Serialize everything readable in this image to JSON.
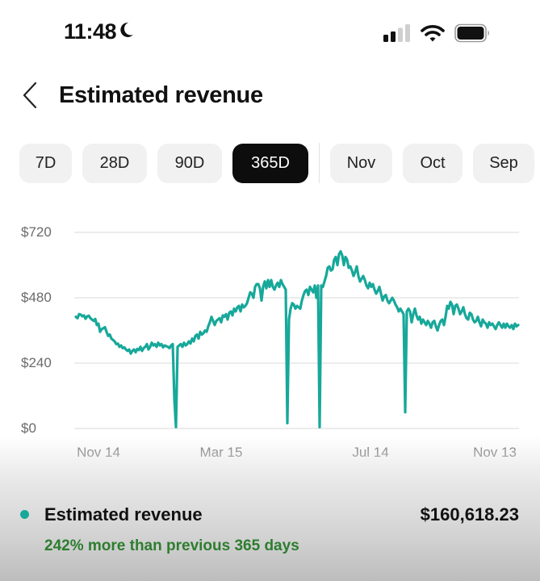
{
  "status_bar": {
    "time": "11:48",
    "focus_icon": "moon-icon",
    "signal_bars_active": 2,
    "signal_bars_total": 4
  },
  "header": {
    "back_icon": "chevron-left-icon",
    "title": "Estimated revenue"
  },
  "tabs": [
    {
      "label": "7D",
      "width": 65,
      "active": false
    },
    {
      "label": "28D",
      "width": 80,
      "active": false
    },
    {
      "label": "90D",
      "width": 80,
      "active": false
    },
    {
      "label": "365D",
      "width": 94,
      "active": true
    },
    {
      "label": "Nov",
      "width": 77,
      "active": false
    },
    {
      "label": "Oct",
      "width": 74,
      "active": false
    },
    {
      "label": "Sep",
      "width": 76,
      "active": false
    }
  ],
  "colors": {
    "line": "#17a89a",
    "grid": "#e6e6e6",
    "positive_change": "#2d7d2f",
    "active_tab_bg": "#0d0d0d"
  },
  "chart_data": {
    "type": "line",
    "title": "Estimated revenue",
    "xlabel": "",
    "ylabel": "",
    "ylim": [
      0,
      720
    ],
    "grid": true,
    "y_ticks": [
      "$720",
      "$480",
      "$240",
      "$0"
    ],
    "y_tick_values": [
      720,
      480,
      240,
      0
    ],
    "x_ticks": [
      "Nov 14",
      "Mar 15",
      "Jul 14",
      "Nov 13"
    ],
    "x_tick_positions": [
      122,
      274,
      459,
      613
    ],
    "series": [
      {
        "name": "Estimated revenue",
        "points": [
          [
            94,
            410
          ],
          [
            96,
            405
          ],
          [
            98,
            420
          ],
          [
            100,
            418
          ],
          [
            102,
            412
          ],
          [
            104,
            415
          ],
          [
            106,
            403
          ],
          [
            108,
            412
          ],
          [
            110,
            414
          ],
          [
            112,
            405
          ],
          [
            114,
            400
          ],
          [
            116,
            395
          ],
          [
            118,
            402
          ],
          [
            120,
            380
          ],
          [
            122,
            385
          ],
          [
            124,
            355
          ],
          [
            126,
            365
          ],
          [
            128,
            368
          ],
          [
            130,
            372
          ],
          [
            132,
            355
          ],
          [
            134,
            340
          ],
          [
            136,
            345
          ],
          [
            138,
            330
          ],
          [
            140,
            325
          ],
          [
            142,
            320
          ],
          [
            144,
            310
          ],
          [
            146,
            312
          ],
          [
            148,
            300
          ],
          [
            150,
            305
          ],
          [
            152,
            295
          ],
          [
            154,
            298
          ],
          [
            156,
            290
          ],
          [
            158,
            285
          ],
          [
            160,
            290
          ],
          [
            162,
            275
          ],
          [
            164,
            285
          ],
          [
            166,
            290
          ],
          [
            168,
            280
          ],
          [
            170,
            292
          ],
          [
            172,
            288
          ],
          [
            174,
            300
          ],
          [
            176,
            285
          ],
          [
            178,
            295
          ],
          [
            180,
            300
          ],
          [
            182,
            310
          ],
          [
            184,
            290
          ],
          [
            186,
            300
          ],
          [
            188,
            315
          ],
          [
            190,
            305
          ],
          [
            192,
            310
          ],
          [
            194,
            300
          ],
          [
            196,
            315
          ],
          [
            198,
            305
          ],
          [
            200,
            310
          ],
          [
            202,
            298
          ],
          [
            204,
            305
          ],
          [
            206,
            302
          ],
          [
            208,
            300
          ],
          [
            210,
            295
          ],
          [
            212,
            305
          ],
          [
            214,
            310
          ],
          [
            216,
            110
          ],
          [
            218,
            5
          ],
          [
            220,
            300
          ],
          [
            222,
            305
          ],
          [
            224,
            310
          ],
          [
            226,
            300
          ],
          [
            228,
            315
          ],
          [
            230,
            305
          ],
          [
            232,
            310
          ],
          [
            234,
            320
          ],
          [
            236,
            312
          ],
          [
            238,
            330
          ],
          [
            240,
            320
          ],
          [
            242,
            340
          ],
          [
            244,
            345
          ],
          [
            246,
            330
          ],
          [
            248,
            355
          ],
          [
            250,
            345
          ],
          [
            252,
            350
          ],
          [
            254,
            360
          ],
          [
            256,
            355
          ],
          [
            258,
            375
          ],
          [
            260,
            390
          ],
          [
            262,
            410
          ],
          [
            264,
            395
          ],
          [
            266,
            380
          ],
          [
            268,
            395
          ],
          [
            270,
            400
          ],
          [
            272,
            405
          ],
          [
            274,
            390
          ],
          [
            276,
            415
          ],
          [
            278,
            410
          ],
          [
            280,
            420
          ],
          [
            282,
            400
          ],
          [
            284,
            425
          ],
          [
            286,
            430
          ],
          [
            288,
            415
          ],
          [
            290,
            440
          ],
          [
            292,
            430
          ],
          [
            294,
            445
          ],
          [
            296,
            450
          ],
          [
            298,
            430
          ],
          [
            300,
            455
          ],
          [
            302,
            445
          ],
          [
            304,
            450
          ],
          [
            306,
            460
          ],
          [
            308,
            480
          ],
          [
            310,
            500
          ],
          [
            312,
            495
          ],
          [
            314,
            480
          ],
          [
            316,
            520
          ],
          [
            318,
            530
          ],
          [
            320,
            530
          ],
          [
            322,
            515
          ],
          [
            324,
            470
          ],
          [
            326,
            520
          ],
          [
            328,
            540
          ],
          [
            330,
            515
          ],
          [
            332,
            545
          ],
          [
            334,
            520
          ],
          [
            336,
            545
          ],
          [
            338,
            520
          ],
          [
            340,
            510
          ],
          [
            342,
            525
          ],
          [
            344,
            535
          ],
          [
            346,
            520
          ],
          [
            348,
            545
          ],
          [
            350,
            530
          ],
          [
            352,
            520
          ],
          [
            354,
            510
          ],
          [
            356,
            20
          ],
          [
            358,
            400
          ],
          [
            360,
            440
          ],
          [
            362,
            460
          ],
          [
            364,
            455
          ],
          [
            366,
            440
          ],
          [
            368,
            450
          ],
          [
            370,
            445
          ],
          [
            372,
            440
          ],
          [
            374,
            470
          ],
          [
            376,
            490
          ],
          [
            378,
            505
          ],
          [
            380,
            510
          ],
          [
            382,
            490
          ],
          [
            384,
            520
          ],
          [
            386,
            510
          ],
          [
            388,
            500
          ],
          [
            390,
            525
          ],
          [
            392,
            480
          ],
          [
            394,
            525
          ],
          [
            396,
            5
          ],
          [
            398,
            525
          ],
          [
            400,
            520
          ],
          [
            402,
            540
          ],
          [
            404,
            560
          ],
          [
            406,
            590
          ],
          [
            408,
            595
          ],
          [
            410,
            580
          ],
          [
            412,
            585
          ],
          [
            414,
            620
          ],
          [
            416,
            630
          ],
          [
            418,
            600
          ],
          [
            420,
            640
          ],
          [
            422,
            650
          ],
          [
            424,
            635
          ],
          [
            426,
            600
          ],
          [
            428,
            630
          ],
          [
            430,
            620
          ],
          [
            432,
            590
          ],
          [
            434,
            595
          ],
          [
            436,
            580
          ],
          [
            438,
            560
          ],
          [
            440,
            575
          ],
          [
            442,
            595
          ],
          [
            444,
            560
          ],
          [
            446,
            540
          ],
          [
            448,
            550
          ],
          [
            450,
            560
          ],
          [
            452,
            545
          ],
          [
            454,
            525
          ],
          [
            456,
            515
          ],
          [
            458,
            535
          ],
          [
            460,
            520
          ],
          [
            462,
            530
          ],
          [
            464,
            510
          ],
          [
            466,
            495
          ],
          [
            468,
            505
          ],
          [
            470,
            520
          ],
          [
            472,
            495
          ],
          [
            474,
            470
          ],
          [
            476,
            485
          ],
          [
            478,
            490
          ],
          [
            480,
            470
          ],
          [
            482,
            460
          ],
          [
            484,
            470
          ],
          [
            486,
            480
          ],
          [
            488,
            470
          ],
          [
            490,
            455
          ],
          [
            492,
            445
          ],
          [
            494,
            430
          ],
          [
            496,
            440
          ],
          [
            498,
            430
          ],
          [
            500,
            420
          ],
          [
            502,
            60
          ],
          [
            504,
            430
          ],
          [
            506,
            440
          ],
          [
            508,
            430
          ],
          [
            510,
            390
          ],
          [
            512,
            420
          ],
          [
            514,
            440
          ],
          [
            516,
            415
          ],
          [
            518,
            400
          ],
          [
            520,
            410
          ],
          [
            522,
            385
          ],
          [
            524,
            400
          ],
          [
            526,
            390
          ],
          [
            528,
            380
          ],
          [
            530,
            395
          ],
          [
            532,
            385
          ],
          [
            534,
            370
          ],
          [
            536,
            390
          ],
          [
            538,
            395
          ],
          [
            540,
            375
          ],
          [
            542,
            360
          ],
          [
            544,
            380
          ],
          [
            546,
            395
          ],
          [
            548,
            400
          ],
          [
            550,
            380
          ],
          [
            552,
            410
          ],
          [
            554,
            450
          ],
          [
            556,
            440
          ],
          [
            558,
            465
          ],
          [
            560,
            455
          ],
          [
            562,
            420
          ],
          [
            564,
            450
          ],
          [
            566,
            455
          ],
          [
            568,
            440
          ],
          [
            570,
            420
          ],
          [
            572,
            430
          ],
          [
            574,
            445
          ],
          [
            576,
            420
          ],
          [
            578,
            405
          ],
          [
            580,
            400
          ],
          [
            582,
            425
          ],
          [
            584,
            420
          ],
          [
            586,
            400
          ],
          [
            588,
            390
          ],
          [
            590,
            395
          ],
          [
            592,
            410
          ],
          [
            594,
            390
          ],
          [
            596,
            375
          ],
          [
            598,
            400
          ],
          [
            600,
            390
          ],
          [
            602,
            385
          ],
          [
            604,
            370
          ],
          [
            606,
            390
          ],
          [
            608,
            380
          ],
          [
            610,
            385
          ],
          [
            612,
            375
          ],
          [
            614,
            365
          ],
          [
            616,
            380
          ],
          [
            618,
            390
          ],
          [
            620,
            380
          ],
          [
            622,
            370
          ],
          [
            624,
            385
          ],
          [
            626,
            370
          ],
          [
            628,
            385
          ],
          [
            630,
            375
          ],
          [
            632,
            370
          ],
          [
            634,
            380
          ],
          [
            636,
            365
          ],
          [
            638,
            385
          ],
          [
            640,
            375
          ],
          [
            642,
            380
          ]
        ]
      }
    ]
  },
  "summary": {
    "legend_label": "Estimated revenue",
    "value": "$160,618.23",
    "change_text": "242% more than previous 365 days"
  }
}
